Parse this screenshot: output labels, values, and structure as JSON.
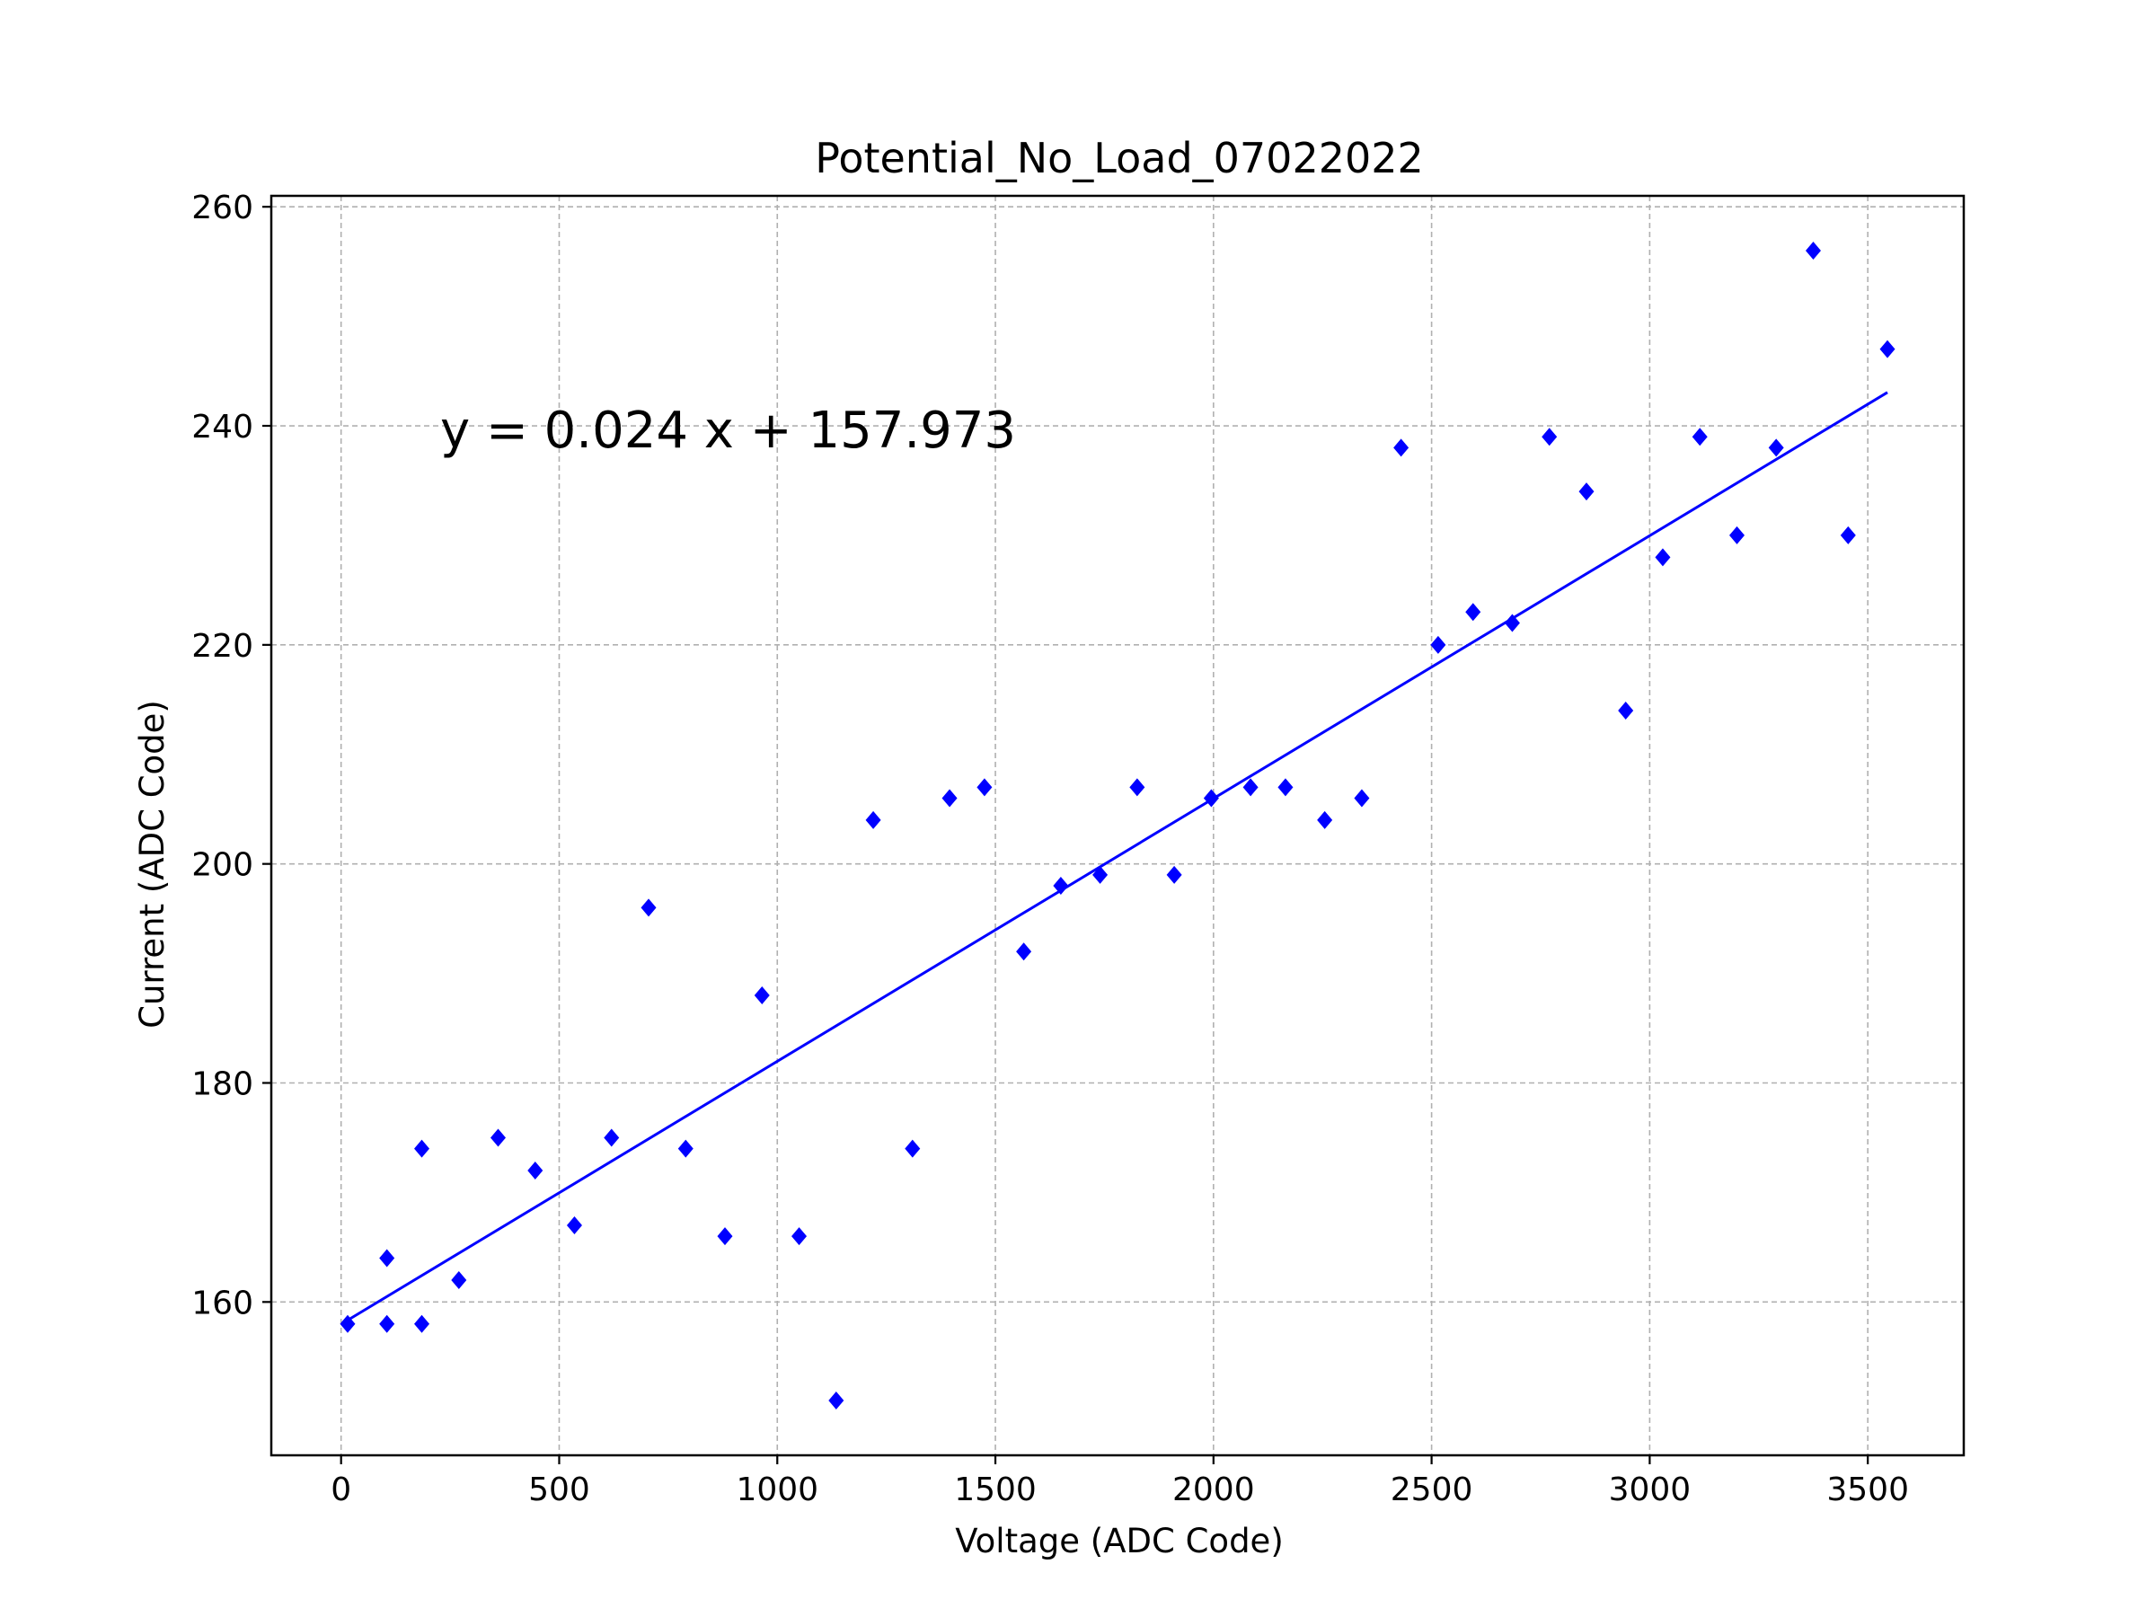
{
  "chart_data": {
    "type": "scatter",
    "title": "Potential_No_Load_07022022",
    "xlabel": "Voltage (ADC Code)",
    "ylabel": "Current (ADC Code)",
    "xlim": [
      -160,
      3720
    ],
    "ylim": [
      146,
      261
    ],
    "xticks": [
      0,
      500,
      1000,
      1500,
      2000,
      2500,
      3000,
      3500
    ],
    "yticks": [
      160,
      180,
      200,
      220,
      240,
      260
    ],
    "grid": true,
    "annotation": "y = 0.024 x + 157.973",
    "marker_color": "#0000ff",
    "line_color": "#0000ff",
    "fit": {
      "slope": 0.024,
      "intercept": 157.973,
      "x_range": [
        15,
        3545
      ]
    },
    "points": [
      [
        15,
        158
      ],
      [
        105,
        164
      ],
      [
        105,
        158
      ],
      [
        185,
        174
      ],
      [
        185,
        158
      ],
      [
        270,
        162
      ],
      [
        360,
        175
      ],
      [
        445,
        172
      ],
      [
        535,
        167
      ],
      [
        620,
        175
      ],
      [
        705,
        196
      ],
      [
        790,
        174
      ],
      [
        880,
        166
      ],
      [
        965,
        188
      ],
      [
        1050,
        166
      ],
      [
        1135,
        151
      ],
      [
        1220,
        204
      ],
      [
        1310,
        174
      ],
      [
        1395,
        206
      ],
      [
        1475,
        207
      ],
      [
        1565,
        192
      ],
      [
        1650,
        198
      ],
      [
        1740,
        199
      ],
      [
        1825,
        207
      ],
      [
        1910,
        199
      ],
      [
        1995,
        206
      ],
      [
        2085,
        207
      ],
      [
        2165,
        207
      ],
      [
        2255,
        204
      ],
      [
        2340,
        206
      ],
      [
        2430,
        238
      ],
      [
        2515,
        220
      ],
      [
        2595,
        223
      ],
      [
        2685,
        222
      ],
      [
        2770,
        239
      ],
      [
        2855,
        234
      ],
      [
        2945,
        214
      ],
      [
        3030,
        228
      ],
      [
        3115,
        239
      ],
      [
        3200,
        230
      ],
      [
        3290,
        238
      ],
      [
        3375,
        256
      ],
      [
        3455,
        230
      ],
      [
        3545,
        247
      ]
    ]
  }
}
